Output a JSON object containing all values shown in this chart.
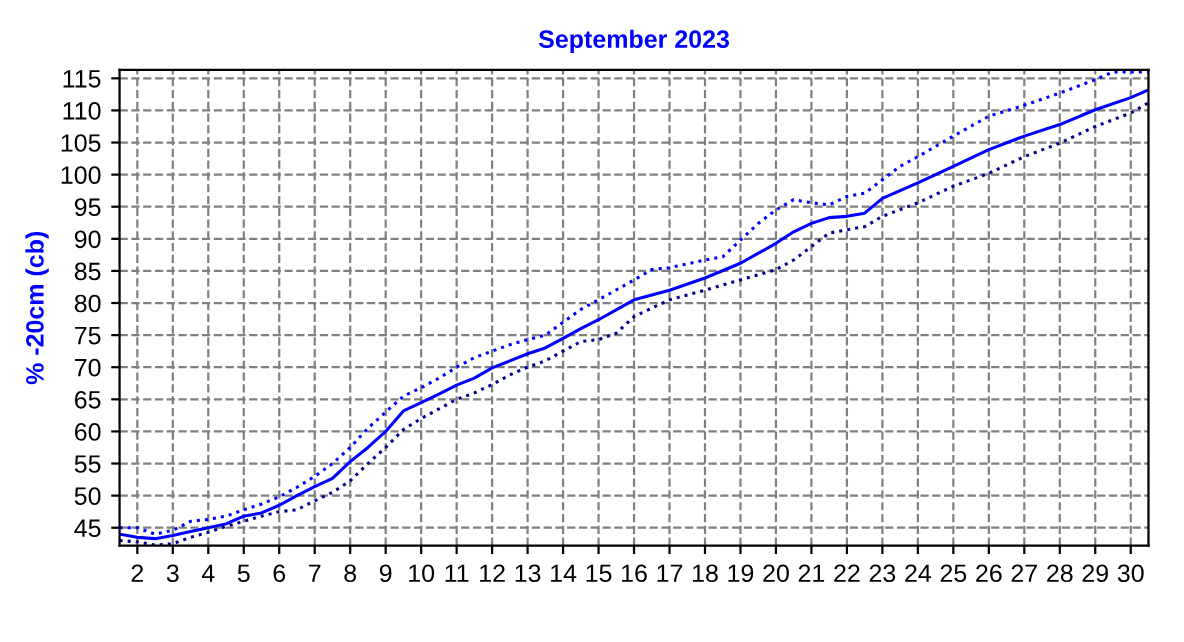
{
  "chart_data": {
    "type": "line",
    "title": "September 2023",
    "ylabel": "% -20cm (cb)",
    "x": [
      1.5,
      2,
      2.5,
      3,
      3.5,
      4,
      4.5,
      5,
      5.5,
      6,
      6.5,
      7,
      7.5,
      8,
      8.5,
      9,
      9.5,
      10,
      10.5,
      11,
      11.5,
      12,
      12.5,
      13,
      13.5,
      14,
      14.5,
      15,
      16,
      17,
      18,
      19,
      20,
      20.5,
      21,
      21.5,
      22,
      22.5,
      23,
      24,
      25,
      26,
      27,
      28,
      29,
      30,
      30.5
    ],
    "series": [
      {
        "color": "#0000ff",
        "line_style": "solid",
        "values": [
          44.0,
          43.5,
          43.3,
          43.8,
          44.4,
          45.0,
          45.6,
          46.8,
          47.3,
          48.5,
          50.0,
          51.4,
          52.7,
          55.3,
          57.5,
          60.0,
          63.2,
          64.5,
          65.8,
          67.2,
          68.3,
          69.9,
          71.0,
          72.1,
          73.0,
          74.5,
          76.0,
          77.4,
          80.5,
          82.0,
          83.9,
          86.2,
          89.3,
          91.1,
          92.4,
          93.3,
          93.5,
          94.0,
          96.3,
          98.7,
          101.3,
          103.9,
          106.0,
          107.8,
          110.1,
          112.0,
          113.2
        ]
      },
      {
        "color": "#0000ff",
        "line_style": "dotted",
        "x": [
          1.5,
          2,
          2.5,
          3,
          3.5,
          4,
          4.5,
          5,
          5.5,
          6,
          6.5,
          7,
          7.5,
          8,
          8.5,
          9,
          9.5,
          10,
          10.5,
          11,
          11.5,
          12,
          12.5,
          13,
          13.5,
          14,
          14.5,
          15,
          16,
          16.5,
          17,
          18,
          18.5,
          19,
          19.5,
          20,
          20.5,
          21,
          21.5,
          22,
          22.5,
          23,
          23.5,
          24,
          25,
          26,
          27,
          28,
          29,
          29.5,
          30.5
        ],
        "values": [
          45.0,
          45.0,
          44.0,
          44.6,
          46.0,
          46.3,
          46.8,
          47.8,
          48.7,
          49.8,
          51.3,
          53.0,
          55.0,
          57.5,
          60.5,
          63.0,
          65.5,
          66.8,
          68.3,
          70.0,
          71.5,
          72.5,
          73.5,
          74.3,
          75.0,
          77.0,
          79.0,
          80.5,
          83.6,
          85.2,
          85.5,
          86.7,
          87.2,
          89.8,
          92.4,
          94.5,
          96.1,
          95.6,
          95.3,
          96.6,
          97.1,
          99.2,
          101.3,
          102.8,
          106.0,
          109.1,
          110.8,
          112.7,
          114.8,
          116.0,
          116.0
        ]
      },
      {
        "color": "#00008b",
        "line_style": "dotted",
        "x": [
          1.5,
          2,
          2.5,
          3,
          3.5,
          4,
          4.5,
          5,
          5.5,
          6,
          6.5,
          7,
          7.5,
          8,
          8.5,
          9,
          9.5,
          10,
          10.5,
          11,
          11.5,
          12,
          12.5,
          13,
          13.5,
          14,
          14.5,
          15,
          15.5,
          16,
          17,
          18,
          19,
          20,
          20.5,
          21,
          21.5,
          22,
          22.5,
          23,
          24,
          25,
          26,
          27,
          28,
          29,
          30,
          30.5
        ],
        "values": [
          43.0,
          42.8,
          42.3,
          42.5,
          43.5,
          44.3,
          45.2,
          46.0,
          46.8,
          47.5,
          47.8,
          49.2,
          50.5,
          52.3,
          55.0,
          57.5,
          60.3,
          62.0,
          63.5,
          65.0,
          66.0,
          67.3,
          68.8,
          70.0,
          71.0,
          72.5,
          74.0,
          74.3,
          75.3,
          77.9,
          80.5,
          82.0,
          83.6,
          85.2,
          86.7,
          88.8,
          90.9,
          91.4,
          91.9,
          93.5,
          95.6,
          98.2,
          100.2,
          102.8,
          104.9,
          107.5,
          109.6,
          111.2
        ]
      }
    ],
    "xlim": [
      1.5,
      30.5
    ],
    "xticks": [
      2,
      3,
      4,
      5,
      6,
      7,
      8,
      9,
      10,
      11,
      12,
      13,
      14,
      15,
      16,
      17,
      18,
      19,
      20,
      21,
      22,
      23,
      24,
      25,
      26,
      27,
      28,
      29,
      30
    ],
    "ylim": [
      42.2,
      116.3
    ],
    "yticks": [
      45,
      50,
      55,
      60,
      65,
      70,
      75,
      80,
      85,
      90,
      95,
      100,
      105,
      110,
      115
    ],
    "grid": true
  }
}
